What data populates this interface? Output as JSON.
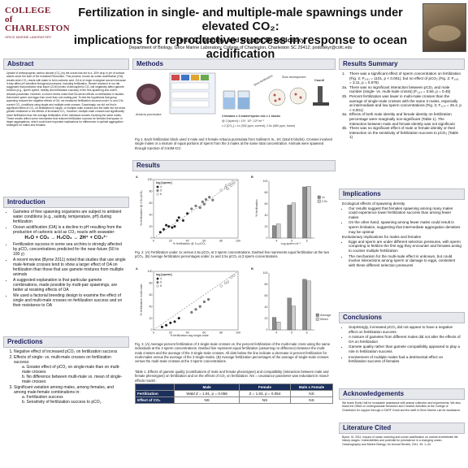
{
  "header": {
    "logo_line1": "COLLEGE of",
    "logo_line2": "CHARLESTON",
    "logo_line3": "GRICE MARINE LABORATORY",
    "title_line1": "Fertilization in single- and multiple-male spawnings under elevated CO₂:",
    "title_line2": "implications for reproductive success in response to ocean acidification",
    "authors": "Tess C. Dooley and Robert D. Podolsky",
    "affiliation": "Department of Biology, Grice Marine Laboratory, College of Charleston, Charleston SC 29412; podolskyr@cofc.edu"
  },
  "abstract": {
    "heading": "Abstract",
    "text": "Uptake of anthropogenic carbon dioxide (CO₂) by the ocean has led to a .30% drop in pH of surface waters since the start of the Industrial Revolution. This process, known as ocean acidification (OA), results when CO₂ reacts with water to form carbonic acid. OA is of major ecological concern because it may affect pH-sensitive biological processes, including fertilization. Recent research in our lab suggested that predicted near-future (2100) levels of atmospheric CO₂ will negatively affect gamete function (e.g., sperm speed, motility and fertilization success) in the free-spawning sea urchin, Arbacia punctulata. However, a recent review noted that OA-driven effects on fertilization in studies that mixed sperm and eggs from more than one mating pair. To test the hypothesis that group spawning reduces the negative effects of OA, we measured fertilization success under 1x and 2.5x current CO₂ conditions using single and multiple-male crosses. Surprisingly, we did not find a significant effect of CO₂ on fertilization in single- or multiple-male crosses and the latter did not show greater resistance to the effects of increased CO₂. However, multiple-male crosses had significantly lower fertilization than the average fertilization of the individual crosses involving the same males. These results reflect some mechanism that reduces fertilization success for females that spawn in larger aggregations, which could have important implications for differences in optimal aggregation strategies for males and females."
  },
  "introduction": {
    "heading": "Introduction",
    "bullets": [
      "Gametes of free spawning organisms are subject to ambient water conditions (e.g., salinity, temperature, pH) during fertilization",
      "Ocean acidification (OA) is a decline in pH resulting from the production of carbonic acid as CO₂ reacts with seawater:",
      "Fertilization success in some sea urchins is strongly affected by pCO₂ concentrations predicted for the near-future (50 to 100 y)",
      "A recent review (Byrne 2011) noted that studies that use single male-female crosses tend to show a larger effect of OA on fertilization than those that use gamete mixtures from multiple animals",
      "A suggested explanation is that particular gamete combinations, made possible by multi-pair spawnings, are better at resisting effects of OA",
      "We used a factorial breeding design to examine the effect of single and multi-male crosses on fertilization success and on their resistance to OA"
    ],
    "equation": "H₂O + CO₂ → H₂CO₃ ↔ 2H⁺ + CO₃²⁻"
  },
  "predictions": {
    "heading": "Predictions",
    "items": [
      "Negative effect of increased pCO₂ on fertilization success",
      "Effects of single- vs. multi-male crosses on fertilization success:",
      "Significant variation among males, among females, and among male-female combinations in:"
    ],
    "sub2": [
      "a.  Greater effect of pCO₂ on single-male than on multi-male crosses",
      "b.  No difference between multi-male vs. mean of single-male crosses"
    ],
    "sub3": [
      "a.  Fertilization success",
      "b.  Sensitivity of fertilization success to pCO₂"
    ]
  },
  "methods": {
    "heading": "Methods",
    "species_label": "Arbacia punctulata",
    "lbl_males": "3 females x 3 males+sperm mix x 1 blocks",
    "lbl_conc": "@ 3 [sperm] = 10⁴, 10⁵, 10⁶ ml⁻¹",
    "lbl_co2": "x 2 [CO₂] = 1x (392 ppm, current), 2.5x (980 ppm, future)",
    "lbl_sd": "Slow development",
    "lbl_count": "Count!",
    "lbl_sf": "Slow fertilization",
    "caption": "Fig 1.  Each fertilization block used 3 male and 3 female Arbacia punctulata from Sullivan's Is., SC (total 5 blocks).  Crosses involved single males or a mixture of equal portions of sperm from the 3 males at the same total concentration. Animals were spawned through injection of 0.53M KCl."
  },
  "results": {
    "heading": "Results",
    "fig2_caption": "Fig. 2.  (A) Fertilization under 1x versus 2.5x pCO₂ at 3 sperm concentrations. Dashed line represents equal fertilization at the two pCO₂. (B) Average fertilization percentages under 1x and 2.5x pCO₂ at 3 sperm concentrations.",
    "fig3_caption": "Fig. 3. (A) Average percent fertilization of 3 single-male crosses vs. the percent fertilization of the multi-male cross using the same individuals at the 3 sperm concentrations. Dashed line represent equal fertilization (assuming no difference) between the multi- male crosses and the average of the 3 single-male crosses. All dots below the line indicate a decrease in percent fertilization for multi-males versus the average of the 3 single-males.  (B) Average fertilization percentages of the average of single-male crosses versus the multi-male crosses at the 3 sperm concentrations.",
    "table_caption": "Table 1. Effects of gamete quality (contributions of male and female phenotypes) and compatibility (interaction between male and female phenotypes) on fertilization and on the effects of CO₂ on fertilization.  NS = covariance parameter was redundant in mixed-effects model .",
    "table": {
      "headers": [
        "",
        "Male",
        "Female",
        "Male x Female"
      ],
      "rows": [
        [
          "Fertilization",
          "Wald Z = 1.91, p = 0.056",
          "Z = 1.93, p = 0.054",
          "NS"
        ],
        [
          "Effect of CO₂",
          "NS",
          "NS",
          "NS"
        ]
      ]
    }
  },
  "summary": {
    "heading": "Results Summary",
    "items": [
      [
        "1.",
        "There was a significant effect of sperm concentration on fertilization (Fig. 2; F₂,₈₁ = 1101, p < 0.001), but no effect of pCO₂ (Fig. 2; F₁,₈₁ = 3.11, p = 0.078)"
      ],
      [
        "2a.",
        "There was no significant interaction between pCO₂ and male number (single- vs. multi-male crosss) (F₁,₁₄ = 0.56, p = 0.45)"
      ],
      [
        "2b.",
        "Percent fertilization was lower in multi-male crosses than the average  of single-male crosses with the same 3 males, especially at intermediate and low sperm concentrations (Fig. 3; F₁,₁₄ = 25.4, p < 0.001)"
      ],
      [
        "3a.",
        "Effects of both male identity and female identity on fertilization percentage were marginally non-significant (Table 1). The interaction between male and female identity was not significant"
      ],
      [
        "3b.",
        "There was no significant effect of male or female identity or their interaction on the sensitivity of fertilization success to pCO₂ (Table 1)"
      ]
    ]
  },
  "implications": {
    "heading": "Implications",
    "group1_title": "Ecological effects of spawning density",
    "group1": [
      "Our results suggest that females spawning among many males could experience lower fertilization success than among fewer males",
      "On the other hand, spawning among fewer males could result in sperm limitation, suggesting that intermediate aggregation densities may be optimal"
    ],
    "group2_title": "Evolutionary implications for males and females",
    "group2": [
      "Eggs and sperm are under different selection pressures, with sperm competing to fertilize the first egg they encounter and females acting to counter multiple fertilization",
      "The mechanism for the multi-male effect is unknown, but could involve interactions among sperm or damage to eggs, consistent with these different selection pressures"
    ]
  },
  "conclusions": {
    "heading": "Conclusions",
    "bullets": [
      "Surprisingly, increased pCO₂ did not appear to have a negative effect on fertilization success",
      "A mixture of gametes from different males did not alter the effects of OA on fertilization",
      "Gamete quality rather than gamete compatibility appeared to play a role in fertilization success",
      "Involvement of multiple males had a detrimental effect on fertilization success of females"
    ]
  },
  "acknowledgements": {
    "heading": "Acknowledgements",
    "text": "We thank Emily Hall for invaluable assistance with animal collection and experiments. We also thank the Office of Undergraduate Research and Creative Activities at the College of Charleston for support through a SURF Grant and the staff of Grice Marine Lab for assistance."
  },
  "literature": {
    "heading": "Literature Cited",
    "text": "Byrne, M. 2011. Impact of ocean warming and ocean acidification on marine invertebrate life history stages: Vulnerabilities and potential for persistence in a changing ocean.  Oceanography and Marine Biology: An Annual Review, 2011, 49, 1–42."
  },
  "fig_labels": {
    "a": "A",
    "b": "B",
    "legend_title": "log [sperm]",
    "l4": "4",
    "l5": "5",
    "l6": "6",
    "fig2a_x": "% fertilization @ 1x pCO₂",
    "fig2a_y": "% fertilization @ 2.5x pCO₂",
    "fig2b_x": "Log sperm ml⁻¹",
    "fig2b_y": "% fertilization",
    "fig2b_s1": "1x",
    "fig2b_s2": "2.5x",
    "fig3a_x": "% fertilization avg single-male",
    "fig3a_y": "% fertilization multi-male",
    "fig3b_s1": "Average",
    "fig3b_s2": "Mixed"
  },
  "chart_data": [
    {
      "type": "scatter",
      "title": "",
      "xlabel": "% fertilization @ 1x pCO₂",
      "ylabel": "% fertilization @ 2.5x pCO₂",
      "xlim": [
        0,
        100
      ],
      "ylim": [
        0,
        100
      ],
      "series": [
        {
          "name": "4",
          "points": [
            [
              8,
              10
            ],
            [
              12,
              15
            ],
            [
              18,
              20
            ],
            [
              15,
              22
            ],
            [
              25,
              20
            ],
            [
              28,
              30
            ],
            [
              30,
              35
            ],
            [
              22,
              18
            ],
            [
              35,
              30
            ],
            [
              40,
              42
            ]
          ]
        },
        {
          "name": "5",
          "points": [
            [
              45,
              50
            ],
            [
              55,
              52
            ],
            [
              60,
              58
            ],
            [
              62,
              66
            ],
            [
              70,
              65
            ],
            [
              50,
              55
            ],
            [
              58,
              62
            ],
            [
              66,
              70
            ]
          ]
        },
        {
          "name": "6",
          "points": [
            [
              80,
              82
            ],
            [
              85,
              86
            ],
            [
              88,
              84
            ],
            [
              90,
              92
            ],
            [
              92,
              90
            ],
            [
              95,
              94
            ],
            [
              86,
              90
            ],
            [
              94,
              96
            ]
          ]
        }
      ]
    },
    {
      "type": "bar",
      "title": "",
      "xlabel": "Log sperm ml⁻¹",
      "ylabel": "% fertilization",
      "categories": [
        "4",
        "5",
        "6"
      ],
      "ylim": [
        0,
        100
      ],
      "series": [
        {
          "name": "1x",
          "values": [
            22,
            58,
            90
          ]
        },
        {
          "name": "2.5x",
          "values": [
            25,
            62,
            91
          ]
        }
      ]
    },
    {
      "type": "scatter",
      "title": "",
      "xlabel": "% fertilization avg single-male",
      "ylabel": "% fertilization multi-male",
      "xlim": [
        0,
        100
      ],
      "ylim": [
        0,
        100
      ],
      "series": [
        {
          "name": "4",
          "points": [
            [
              10,
              5
            ],
            [
              15,
              8
            ],
            [
              20,
              12
            ],
            [
              25,
              14
            ],
            [
              30,
              20
            ]
          ]
        },
        {
          "name": "5",
          "points": [
            [
              45,
              30
            ],
            [
              50,
              35
            ],
            [
              55,
              40
            ],
            [
              60,
              48
            ],
            [
              65,
              52
            ]
          ]
        },
        {
          "name": "6",
          "points": [
            [
              80,
              75
            ],
            [
              85,
              80
            ],
            [
              88,
              82
            ],
            [
              92,
              90
            ],
            [
              95,
              93
            ]
          ]
        }
      ]
    },
    {
      "type": "bar",
      "title": "",
      "xlabel": "",
      "ylabel": "",
      "categories": [
        "4",
        "5",
        "6"
      ],
      "ylim": [
        0,
        100
      ],
      "series": [
        {
          "name": "Average",
          "values": [
            22,
            56,
            89
          ]
        },
        {
          "name": "Mixed",
          "values": [
            14,
            42,
            86
          ]
        }
      ]
    }
  ]
}
